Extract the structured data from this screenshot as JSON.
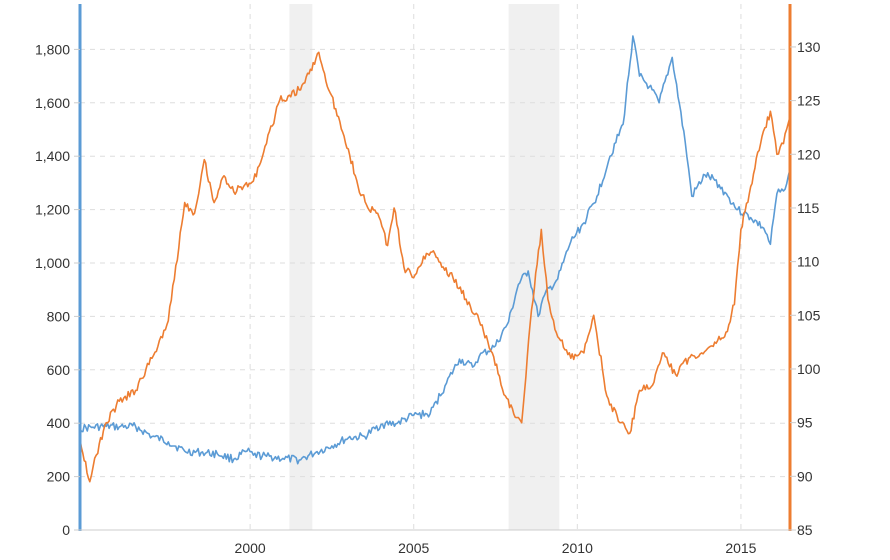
{
  "chart_data": {
    "type": "line",
    "title": "",
    "xlabel": "",
    "ylabel_left": "",
    "ylabel_right": "",
    "xlim": [
      1994.8,
      2016.5
    ],
    "x_ticks": [
      {
        "value": 2000,
        "label": "2000"
      },
      {
        "value": 2005,
        "label": "2005"
      },
      {
        "value": 2010,
        "label": "2010"
      },
      {
        "value": 2015,
        "label": "2015"
      }
    ],
    "left_axis": {
      "ylim": [
        0,
        1970
      ],
      "ticks": [
        {
          "value": 0,
          "label": "0"
        },
        {
          "value": 200,
          "label": "200"
        },
        {
          "value": 400,
          "label": "400"
        },
        {
          "value": 600,
          "label": "600"
        },
        {
          "value": 800,
          "label": "800"
        },
        {
          "value": 1000,
          "label": "1,000"
        },
        {
          "value": 1200,
          "label": "1,200"
        },
        {
          "value": 1400,
          "label": "1,400"
        },
        {
          "value": 1600,
          "label": "1,600"
        },
        {
          "value": 1800,
          "label": "1,800"
        }
      ],
      "color": "#5b9bd5"
    },
    "right_axis": {
      "ylim": [
        85,
        134
      ],
      "ticks": [
        {
          "value": 85,
          "label": "85"
        },
        {
          "value": 90,
          "label": "90"
        },
        {
          "value": 95,
          "label": "95"
        },
        {
          "value": 100,
          "label": "100"
        },
        {
          "value": 105,
          "label": "105"
        },
        {
          "value": 110,
          "label": "110"
        },
        {
          "value": 115,
          "label": "115"
        },
        {
          "value": 120,
          "label": "120"
        },
        {
          "value": 125,
          "label": "125"
        },
        {
          "value": 130,
          "label": "130"
        }
      ],
      "color": "#ed7d31"
    },
    "shaded_periods": [
      {
        "start": 2001.2,
        "end": 2001.9
      },
      {
        "start": 2007.9,
        "end": 2009.45
      }
    ],
    "series": [
      {
        "name": "Blue series",
        "axis": "left",
        "color": "#5b9bd5",
        "points": [
          [
            1994.8,
            380
          ],
          [
            1995.2,
            385
          ],
          [
            1995.6,
            388
          ],
          [
            1996.0,
            386
          ],
          [
            1996.5,
            388
          ],
          [
            1997.0,
            350
          ],
          [
            1997.5,
            330
          ],
          [
            1998.0,
            295
          ],
          [
            1998.5,
            290
          ],
          [
            1999.0,
            285
          ],
          [
            1999.5,
            265
          ],
          [
            1999.9,
            295
          ],
          [
            2000.1,
            280
          ],
          [
            2000.5,
            276
          ],
          [
            2001.0,
            268
          ],
          [
            2001.5,
            262
          ],
          [
            2002.0,
            290
          ],
          [
            2002.5,
            315
          ],
          [
            2003.0,
            345
          ],
          [
            2003.5,
            350
          ],
          [
            2004.0,
            395
          ],
          [
            2004.5,
            400
          ],
          [
            2005.0,
            430
          ],
          [
            2005.5,
            435
          ],
          [
            2006.0,
            550
          ],
          [
            2006.4,
            640
          ],
          [
            2006.8,
            610
          ],
          [
            2007.0,
            650
          ],
          [
            2007.5,
            690
          ],
          [
            2007.9,
            780
          ],
          [
            2008.2,
            920
          ],
          [
            2008.5,
            970
          ],
          [
            2008.8,
            800
          ],
          [
            2009.0,
            880
          ],
          [
            2009.4,
            940
          ],
          [
            2009.8,
            1080
          ],
          [
            2010.2,
            1150
          ],
          [
            2010.6,
            1250
          ],
          [
            2011.0,
            1400
          ],
          [
            2011.4,
            1520
          ],
          [
            2011.7,
            1850
          ],
          [
            2011.9,
            1700
          ],
          [
            2012.2,
            1660
          ],
          [
            2012.5,
            1600
          ],
          [
            2012.9,
            1770
          ],
          [
            2013.3,
            1450
          ],
          [
            2013.5,
            1250
          ],
          [
            2013.9,
            1330
          ],
          [
            2014.2,
            1310
          ],
          [
            2014.6,
            1250
          ],
          [
            2014.9,
            1200
          ],
          [
            2015.3,
            1170
          ],
          [
            2015.7,
            1130
          ],
          [
            2015.9,
            1070
          ],
          [
            2016.1,
            1260
          ],
          [
            2016.3,
            1270
          ],
          [
            2016.5,
            1350
          ]
        ]
      },
      {
        "name": "Orange series",
        "axis": "right",
        "color": "#ed7d31",
        "points": [
          [
            1994.8,
            93.5
          ],
          [
            1995.1,
            89.5
          ],
          [
            1995.3,
            92.0
          ],
          [
            1995.6,
            95.0
          ],
          [
            1996.0,
            97.0
          ],
          [
            1996.5,
            98.0
          ],
          [
            1997.0,
            101.0
          ],
          [
            1997.5,
            104.5
          ],
          [
            1998.0,
            115.5
          ],
          [
            1998.3,
            114.5
          ],
          [
            1998.6,
            119.5
          ],
          [
            1998.9,
            115.5
          ],
          [
            1999.2,
            118.0
          ],
          [
            1999.5,
            116.5
          ],
          [
            1999.8,
            117.0
          ],
          [
            2000.1,
            117.5
          ],
          [
            2000.5,
            121.0
          ],
          [
            2000.9,
            125.0
          ],
          [
            2001.2,
            125.5
          ],
          [
            2001.5,
            126.0
          ],
          [
            2001.8,
            127.5
          ],
          [
            2002.1,
            129.5
          ],
          [
            2002.4,
            126.0
          ],
          [
            2002.7,
            123.5
          ],
          [
            2003.0,
            120.5
          ],
          [
            2003.3,
            117.0
          ],
          [
            2003.6,
            115.0
          ],
          [
            2003.9,
            114.5
          ],
          [
            2004.2,
            111.5
          ],
          [
            2004.4,
            115.0
          ],
          [
            2004.7,
            109.5
          ],
          [
            2005.0,
            108.5
          ],
          [
            2005.3,
            110.5
          ],
          [
            2005.6,
            111.0
          ],
          [
            2005.9,
            109.5
          ],
          [
            2006.2,
            108.5
          ],
          [
            2006.6,
            106.5
          ],
          [
            2007.0,
            104.5
          ],
          [
            2007.4,
            101.5
          ],
          [
            2007.8,
            97.5
          ],
          [
            2008.1,
            95.5
          ],
          [
            2008.3,
            95.0
          ],
          [
            2008.6,
            105.5
          ],
          [
            2008.9,
            113.0
          ],
          [
            2009.1,
            106.5
          ],
          [
            2009.4,
            103.0
          ],
          [
            2009.8,
            101.0
          ],
          [
            2010.2,
            101.5
          ],
          [
            2010.5,
            105.0
          ],
          [
            2010.9,
            97.5
          ],
          [
            2011.3,
            95.0
          ],
          [
            2011.6,
            94.0
          ],
          [
            2011.9,
            98.0
          ],
          [
            2012.3,
            98.5
          ],
          [
            2012.6,
            101.5
          ],
          [
            2013.0,
            99.5
          ],
          [
            2013.4,
            101.0
          ],
          [
            2013.8,
            101.5
          ],
          [
            2014.2,
            102.5
          ],
          [
            2014.5,
            103.0
          ],
          [
            2014.8,
            106.0
          ],
          [
            2015.0,
            113.0
          ],
          [
            2015.3,
            117.0
          ],
          [
            2015.6,
            121.0
          ],
          [
            2015.9,
            124.0
          ],
          [
            2016.1,
            120.0
          ],
          [
            2016.3,
            121.0
          ],
          [
            2016.5,
            123.5
          ]
        ]
      }
    ]
  }
}
